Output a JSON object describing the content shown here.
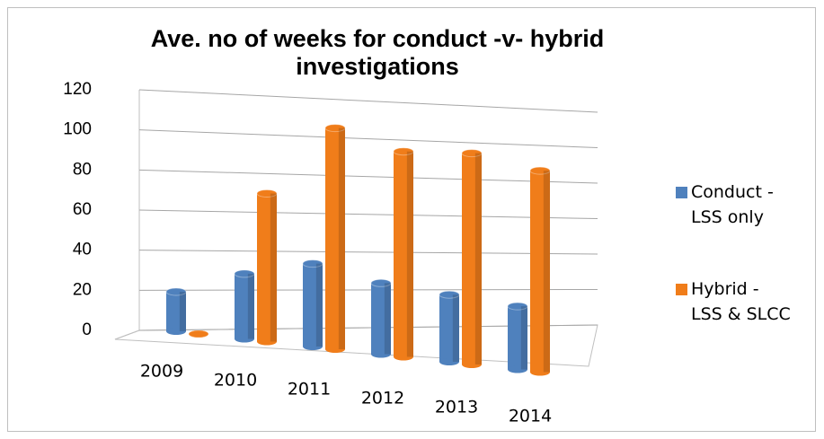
{
  "chart_data": {
    "type": "bar3d",
    "title": "Ave. no of weeks for conduct -v- hybrid investigations",
    "categories": [
      "2009",
      "2010",
      "2011",
      "2012",
      "2013",
      "2014"
    ],
    "series": [
      {
        "name": "Conduct - LSS only",
        "color": "#4f81bd",
        "values": [
          20,
          33,
          42,
          36,
          34,
          32
        ]
      },
      {
        "name": "Hybrid - LSS & SLCC",
        "color": "#f07d1a",
        "values": [
          0,
          75,
          112,
          104,
          107,
          102
        ]
      }
    ],
    "ylim": [
      0,
      120
    ],
    "yticks": [
      0,
      20,
      40,
      60,
      80,
      100,
      120
    ],
    "grid": true,
    "legend": "right"
  }
}
